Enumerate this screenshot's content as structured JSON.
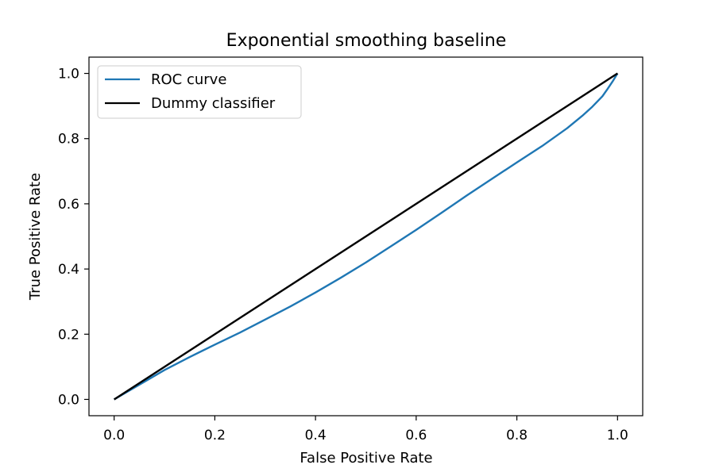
{
  "chart_data": {
    "type": "line",
    "title": "Exponential smoothing baseline",
    "xlabel": "False Positive Rate",
    "ylabel": "True Positive Rate",
    "xlim": [
      -0.05,
      1.05
    ],
    "ylim": [
      -0.05,
      1.05
    ],
    "xticks": [
      0.0,
      0.2,
      0.4,
      0.6,
      0.8,
      1.0
    ],
    "yticks": [
      0.0,
      0.2,
      0.4,
      0.6,
      0.8,
      1.0
    ],
    "xtick_labels": [
      "0.0",
      "0.2",
      "0.4",
      "0.6",
      "0.8",
      "1.0"
    ],
    "ytick_labels": [
      "0.0",
      "0.2",
      "0.4",
      "0.6",
      "0.8",
      "1.0"
    ],
    "grid": false,
    "legend": "top-left",
    "series": [
      {
        "name": "ROC curve",
        "color": "#1f77b4",
        "x": [
          0.0,
          0.05,
          0.1,
          0.15,
          0.2,
          0.25,
          0.3,
          0.35,
          0.4,
          0.45,
          0.5,
          0.55,
          0.6,
          0.65,
          0.7,
          0.75,
          0.8,
          0.85,
          0.9,
          0.93,
          0.95,
          0.97,
          0.98,
          0.99,
          1.0
        ],
        "y": [
          0.0,
          0.045,
          0.09,
          0.13,
          0.168,
          0.205,
          0.245,
          0.285,
          0.328,
          0.373,
          0.42,
          0.47,
          0.52,
          0.572,
          0.625,
          0.676,
          0.727,
          0.777,
          0.832,
          0.87,
          0.898,
          0.93,
          0.952,
          0.975,
          1.0
        ]
      },
      {
        "name": "Dummy classifier",
        "color": "#000000",
        "x": [
          0.0,
          1.0
        ],
        "y": [
          0.0,
          1.0
        ]
      }
    ]
  }
}
